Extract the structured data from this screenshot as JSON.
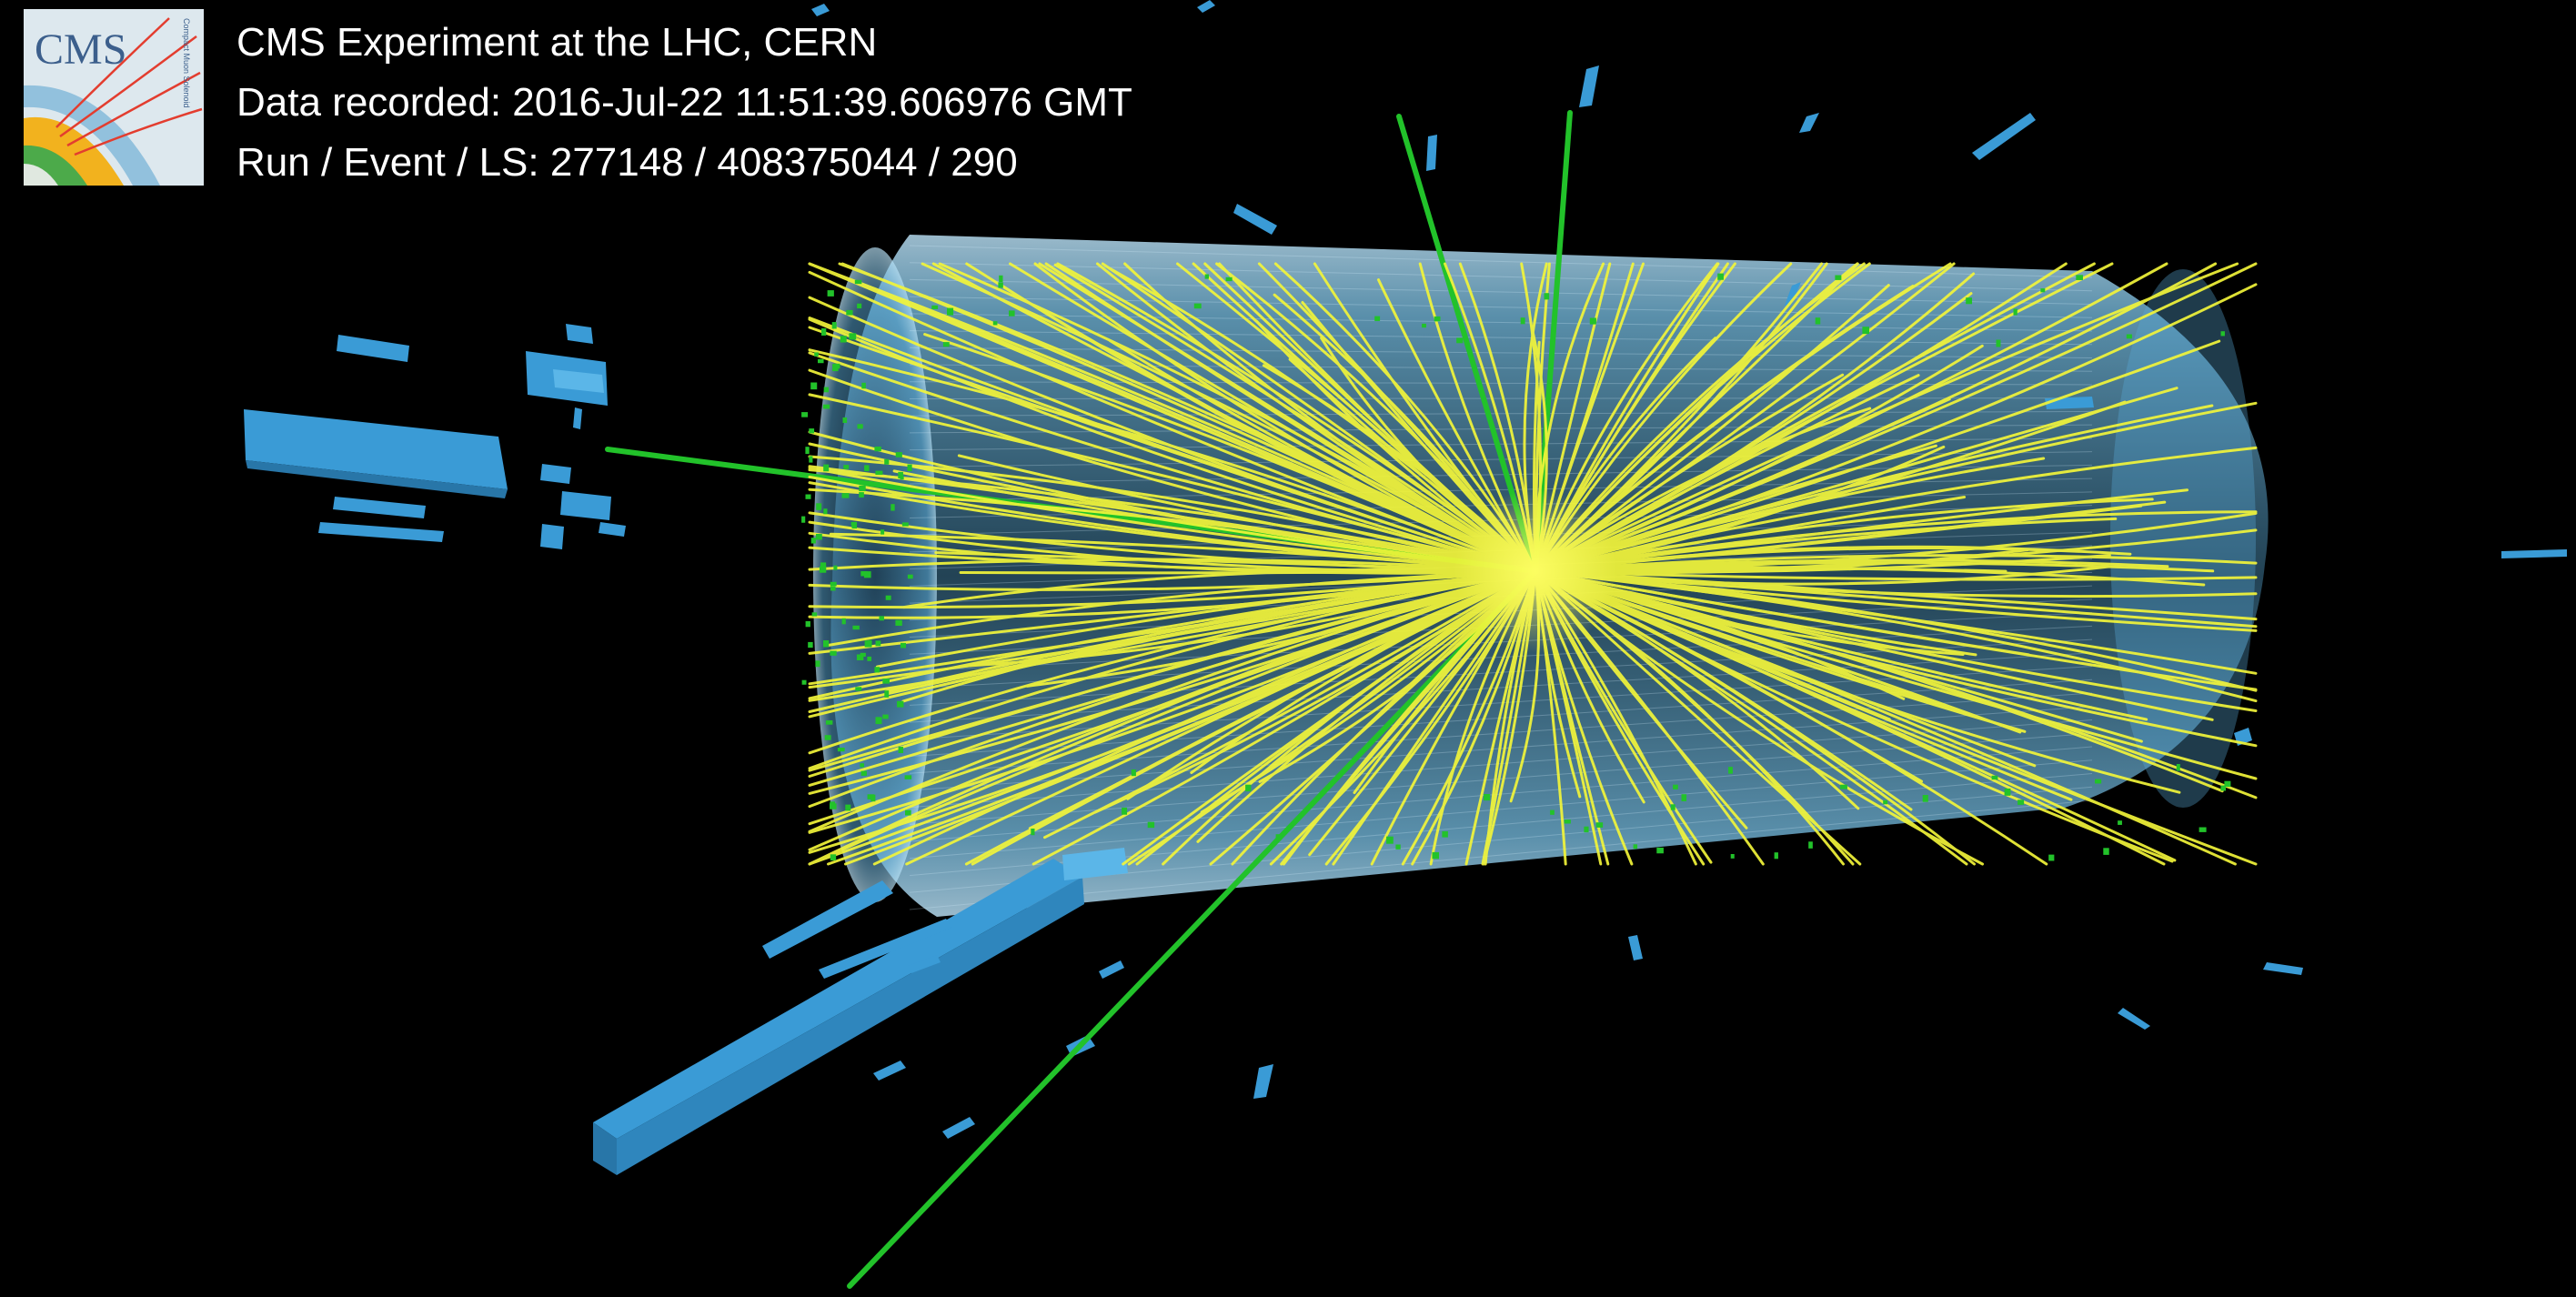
{
  "logo": {
    "text": "CMS",
    "subtext": "Compact Muon Solenoid"
  },
  "caption": {
    "line1": "CMS Experiment at the LHC, CERN",
    "line2": "Data recorded: 2016-Jul-22 11:51:39.606976 GMT",
    "line3": "Run / Event / LS: 277148 / 408375044 / 290"
  },
  "colors": {
    "background": "#000000",
    "tracks": "#f2f53a",
    "muons": "#22c22a",
    "calorimeter": "#3a9bd6",
    "tracker_barrel": "#8fd0f0"
  }
}
